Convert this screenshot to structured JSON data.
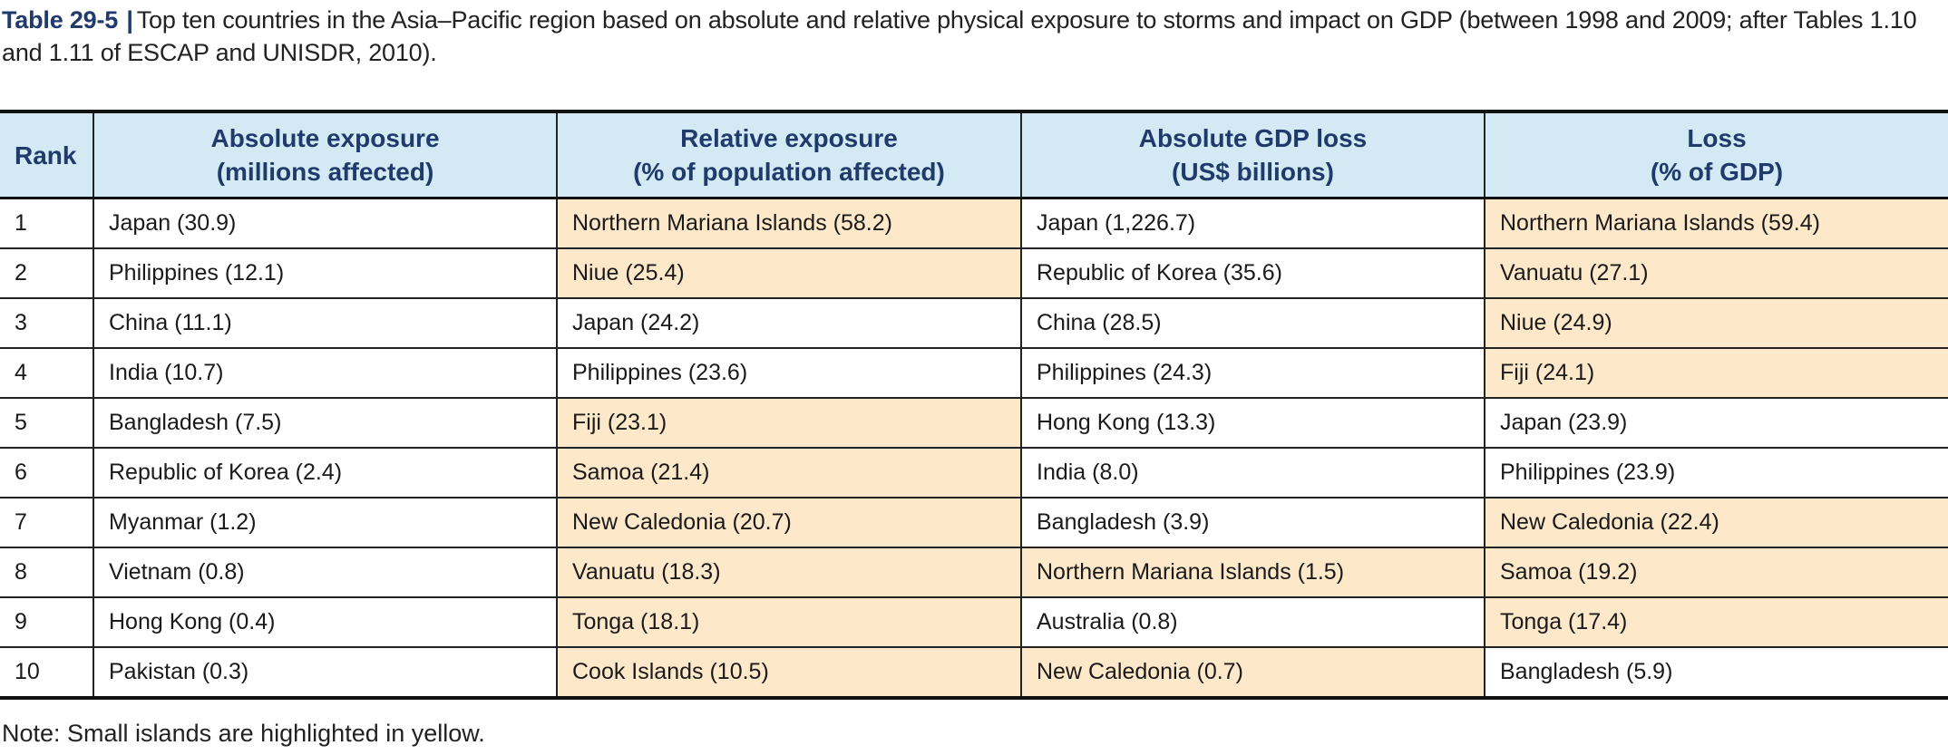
{
  "caption": {
    "label": "Table 29-5",
    "separator": "|",
    "text": "Top ten countries in the Asia–Pacific region based on absolute and relative physical exposure to storms and impact on GDP (between 1998 and 2009; after Tables 1.10 and 1.11 of ESCAP and UNISDR, 2010)."
  },
  "headers": {
    "rank": "Rank",
    "abs_line1": "Absolute exposure",
    "abs_line2": "(millions affected)",
    "rel_line1": "Relative exposure",
    "rel_line2": "(% of population affected)",
    "gdp_line1": "Absolute GDP loss",
    "gdp_line2": "(US$ billions)",
    "loss_line1": "Loss",
    "loss_line2": "(% of GDP)"
  },
  "highlight_color": "#fde8c9",
  "header_color": "#d3eaf5",
  "title_color": "#1f3a6b",
  "rows": [
    {
      "rank": "1",
      "abs": "Japan (30.9)",
      "abs_hl": false,
      "rel": "Northern Mariana Islands (58.2)",
      "rel_hl": true,
      "gdp": "Japan (1,226.7)",
      "gdp_hl": false,
      "loss": "Northern Mariana Islands (59.4)",
      "loss_hl": true
    },
    {
      "rank": "2",
      "abs": "Philippines (12.1)",
      "abs_hl": false,
      "rel": "Niue (25.4)",
      "rel_hl": true,
      "gdp": "Republic of Korea (35.6)",
      "gdp_hl": false,
      "loss": "Vanuatu (27.1)",
      "loss_hl": true
    },
    {
      "rank": "3",
      "abs": "China (11.1)",
      "abs_hl": false,
      "rel": "Japan (24.2)",
      "rel_hl": false,
      "gdp": "China (28.5)",
      "gdp_hl": false,
      "loss": "Niue (24.9)",
      "loss_hl": true
    },
    {
      "rank": "4",
      "abs": "India (10.7)",
      "abs_hl": false,
      "rel": "Philippines (23.6)",
      "rel_hl": false,
      "gdp": "Philippines (24.3)",
      "gdp_hl": false,
      "loss": "Fiji (24.1)",
      "loss_hl": true
    },
    {
      "rank": "5",
      "abs": "Bangladesh (7.5)",
      "abs_hl": false,
      "rel": "Fiji (23.1)",
      "rel_hl": true,
      "gdp": "Hong Kong (13.3)",
      "gdp_hl": false,
      "loss": "Japan (23.9)",
      "loss_hl": false
    },
    {
      "rank": "6",
      "abs": "Republic of Korea (2.4)",
      "abs_hl": false,
      "rel": "Samoa (21.4)",
      "rel_hl": true,
      "gdp": "India (8.0)",
      "gdp_hl": false,
      "loss": "Philippines (23.9)",
      "loss_hl": false
    },
    {
      "rank": "7",
      "abs": "Myanmar (1.2)",
      "abs_hl": false,
      "rel": "New Caledonia (20.7)",
      "rel_hl": true,
      "gdp": "Bangladesh (3.9)",
      "gdp_hl": false,
      "loss": "New Caledonia (22.4)",
      "loss_hl": true
    },
    {
      "rank": "8",
      "abs": "Vietnam (0.8)",
      "abs_hl": false,
      "rel": "Vanuatu (18.3)",
      "rel_hl": true,
      "gdp": "Northern Mariana Islands (1.5)",
      "gdp_hl": true,
      "loss": "Samoa (19.2)",
      "loss_hl": true
    },
    {
      "rank": "9",
      "abs": "Hong Kong (0.4)",
      "abs_hl": false,
      "rel": "Tonga (18.1)",
      "rel_hl": true,
      "gdp": "Australia (0.8)",
      "gdp_hl": false,
      "loss": "Tonga (17.4)",
      "loss_hl": true
    },
    {
      "rank": "10",
      "abs": "Pakistan (0.3)",
      "abs_hl": false,
      "rel": "Cook Islands (10.5)",
      "rel_hl": true,
      "gdp": "New Caledonia (0.7)",
      "gdp_hl": true,
      "loss": "Bangladesh (5.9)",
      "loss_hl": false
    }
  ],
  "note": "Note: Small islands are highlighted in yellow."
}
